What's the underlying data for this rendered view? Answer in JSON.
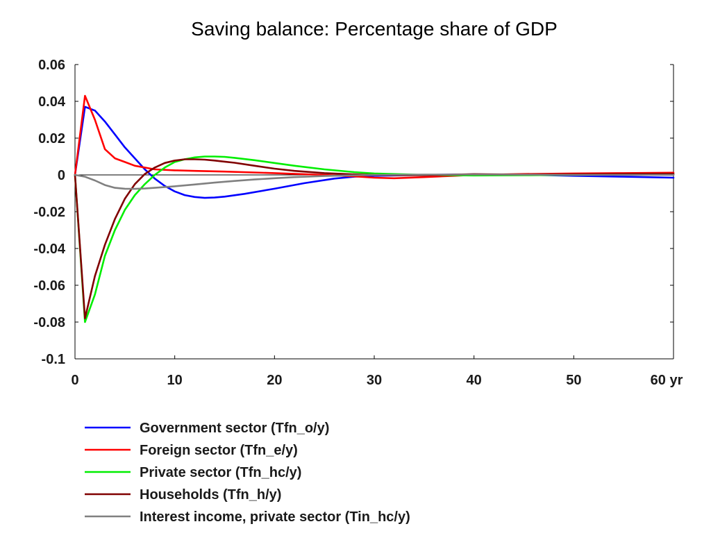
{
  "chart_data": {
    "type": "line",
    "title": "Saving balance: Percentage share of GDP",
    "xlabel": "",
    "ylabel": "",
    "xlim": [
      0,
      60
    ],
    "ylim": [
      -0.1,
      0.06
    ],
    "x_ticks": [
      {
        "value": 0,
        "label": "0"
      },
      {
        "value": 10,
        "label": "10"
      },
      {
        "value": 20,
        "label": "20"
      },
      {
        "value": 30,
        "label": "30"
      },
      {
        "value": 40,
        "label": "40"
      },
      {
        "value": 50,
        "label": "50"
      },
      {
        "value": 60,
        "label": "60 yr"
      }
    ],
    "y_ticks": [
      {
        "value": 0.06,
        "label": "0.06"
      },
      {
        "value": 0.04,
        "label": "0.04"
      },
      {
        "value": 0.02,
        "label": "0.02"
      },
      {
        "value": 0,
        "label": "0"
      },
      {
        "value": -0.02,
        "label": "-0.02"
      },
      {
        "value": -0.04,
        "label": "-0.04"
      },
      {
        "value": -0.06,
        "label": "-0.06"
      },
      {
        "value": -0.08,
        "label": "-0.08"
      },
      {
        "value": -0.1,
        "label": "-0.1"
      }
    ],
    "grid": false,
    "zero_line": true,
    "legend_position": "bottom-left",
    "series": [
      {
        "name": "Government sector (Tfn_o/y)",
        "color": "#0000ff",
        "x": [
          0,
          1,
          2,
          3,
          4,
          5,
          6,
          7,
          8,
          9,
          10,
          11,
          12,
          13,
          14,
          15,
          17,
          20,
          23,
          26,
          28,
          30,
          35,
          40,
          45,
          50,
          55,
          60
        ],
        "y": [
          0,
          0.037,
          0.035,
          0.029,
          0.022,
          0.015,
          0.009,
          0.003,
          -0.002,
          -0.006,
          -0.009,
          -0.011,
          -0.012,
          -0.0125,
          -0.0123,
          -0.0118,
          -0.0103,
          -0.0075,
          -0.0045,
          -0.002,
          -0.001,
          -0.0005,
          0,
          0.0003,
          0.0001,
          -0.0005,
          -0.001,
          -0.0015
        ]
      },
      {
        "name": "Foreign sector (Tfn_e/y)",
        "color": "#ff0000",
        "x": [
          0,
          1,
          2,
          3,
          4,
          5,
          6,
          7,
          8,
          10,
          12,
          15,
          20,
          25,
          28,
          30,
          32,
          35,
          38,
          40,
          45,
          50,
          55,
          60
        ],
        "y": [
          0,
          0.043,
          0.03,
          0.014,
          0.009,
          0.007,
          0.005,
          0.004,
          0.003,
          0.0025,
          0.0022,
          0.0018,
          0.001,
          0,
          -0.0008,
          -0.0015,
          -0.0018,
          -0.0012,
          -0.0005,
          0,
          0.0005,
          0.0008,
          0.001,
          0.0012
        ]
      },
      {
        "name": "Private sector (Tfn_hc/y)",
        "color": "#00ee00",
        "x": [
          0,
          1,
          2,
          3,
          4,
          5,
          6,
          7,
          8,
          9,
          10,
          11,
          12,
          13,
          14,
          15,
          16,
          18,
          20,
          22,
          25,
          28,
          30,
          33,
          35,
          40,
          45,
          50,
          55,
          60
        ],
        "y": [
          0,
          -0.08,
          -0.065,
          -0.044,
          -0.03,
          -0.019,
          -0.011,
          -0.005,
          0,
          0.004,
          0.007,
          0.0085,
          0.0095,
          0.01,
          0.01,
          0.0098,
          0.0093,
          0.008,
          0.0065,
          0.005,
          0.003,
          0.0015,
          0.0008,
          0.0003,
          0,
          -0.0003,
          -0.0002,
          0,
          0.0002,
          0.0003
        ]
      },
      {
        "name": "Households (Tfn_h/y)",
        "color": "#800000",
        "x": [
          0,
          1,
          2,
          3,
          4,
          5,
          6,
          7,
          8,
          9,
          10,
          11,
          12,
          13,
          14,
          15,
          16,
          18,
          20,
          22,
          25,
          28,
          30,
          33,
          35,
          40,
          45,
          50,
          55,
          60
        ],
        "y": [
          0,
          -0.078,
          -0.055,
          -0.038,
          -0.024,
          -0.013,
          -0.005,
          0.0005,
          0.004,
          0.0065,
          0.0078,
          0.0085,
          0.0085,
          0.0083,
          0.0078,
          0.0072,
          0.0066,
          0.005,
          0.0034,
          0.0022,
          0.001,
          0.0003,
          0,
          -0.0002,
          -0.0002,
          0.0004,
          0.0002,
          0.0003,
          0.0005,
          0.0006
        ]
      },
      {
        "name": "Interest income, private sector (Tin_hc/y)",
        "color": "#808080",
        "x": [
          0,
          1,
          2,
          3,
          4,
          5,
          6,
          7,
          8,
          10,
          12,
          14,
          16,
          18,
          20,
          22,
          25,
          28,
          30,
          35,
          40,
          45,
          50,
          55,
          60
        ],
        "y": [
          0,
          -0.001,
          -0.003,
          -0.0055,
          -0.007,
          -0.0075,
          -0.0076,
          -0.0074,
          -0.007,
          -0.0062,
          -0.0052,
          -0.0042,
          -0.0033,
          -0.0025,
          -0.0018,
          -0.0012,
          -0.0006,
          -0.0002,
          0,
          0.0002,
          0.0002,
          0.0001,
          0,
          0,
          0
        ]
      }
    ]
  }
}
